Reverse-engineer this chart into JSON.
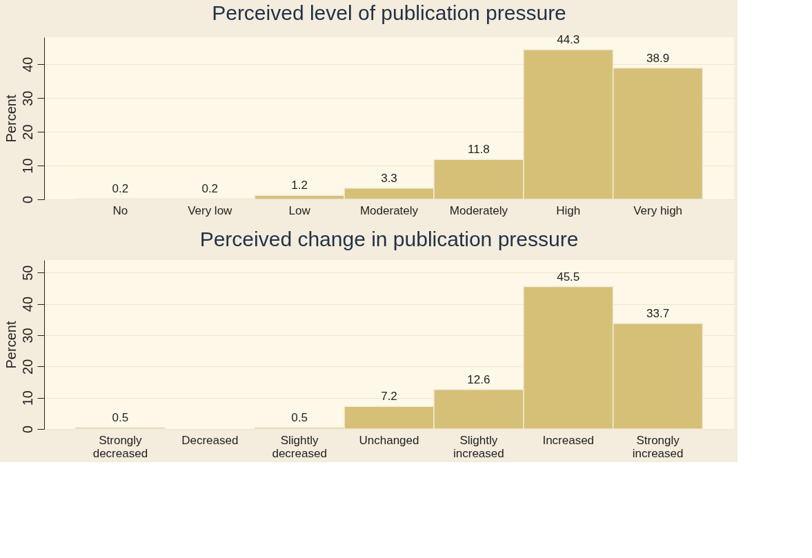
{
  "chart_data": [
    {
      "type": "bar",
      "title": "Perceived level of publication pressure",
      "ylabel": "Percent",
      "categories": [
        "No",
        "Very low",
        "Low",
        "Moderately",
        "Moderately",
        "High",
        "Very high"
      ],
      "values": [
        0.2,
        0.2,
        1.2,
        3.3,
        11.8,
        44.3,
        38.9
      ],
      "color": "#d6c077",
      "ylim": [
        0,
        48
      ],
      "yticks": [
        0,
        10,
        20,
        30,
        40
      ],
      "grid": "y",
      "data_labels": true
    },
    {
      "type": "bar",
      "title": "Perceived change in publication pressure",
      "ylabel": "Percent",
      "categories": [
        "Strongly decreased",
        "Decreased",
        "Slightly decreased",
        "Unchanged",
        "Slightly increased",
        "Increased",
        "Strongly increased"
      ],
      "values": [
        0.5,
        null,
        0.5,
        7.2,
        12.6,
        45.5,
        33.7
      ],
      "color": "#d6c077",
      "ylim": [
        0,
        54
      ],
      "yticks": [
        0,
        10,
        20,
        30,
        40,
        50
      ],
      "grid": "y",
      "data_labels": true
    }
  ]
}
